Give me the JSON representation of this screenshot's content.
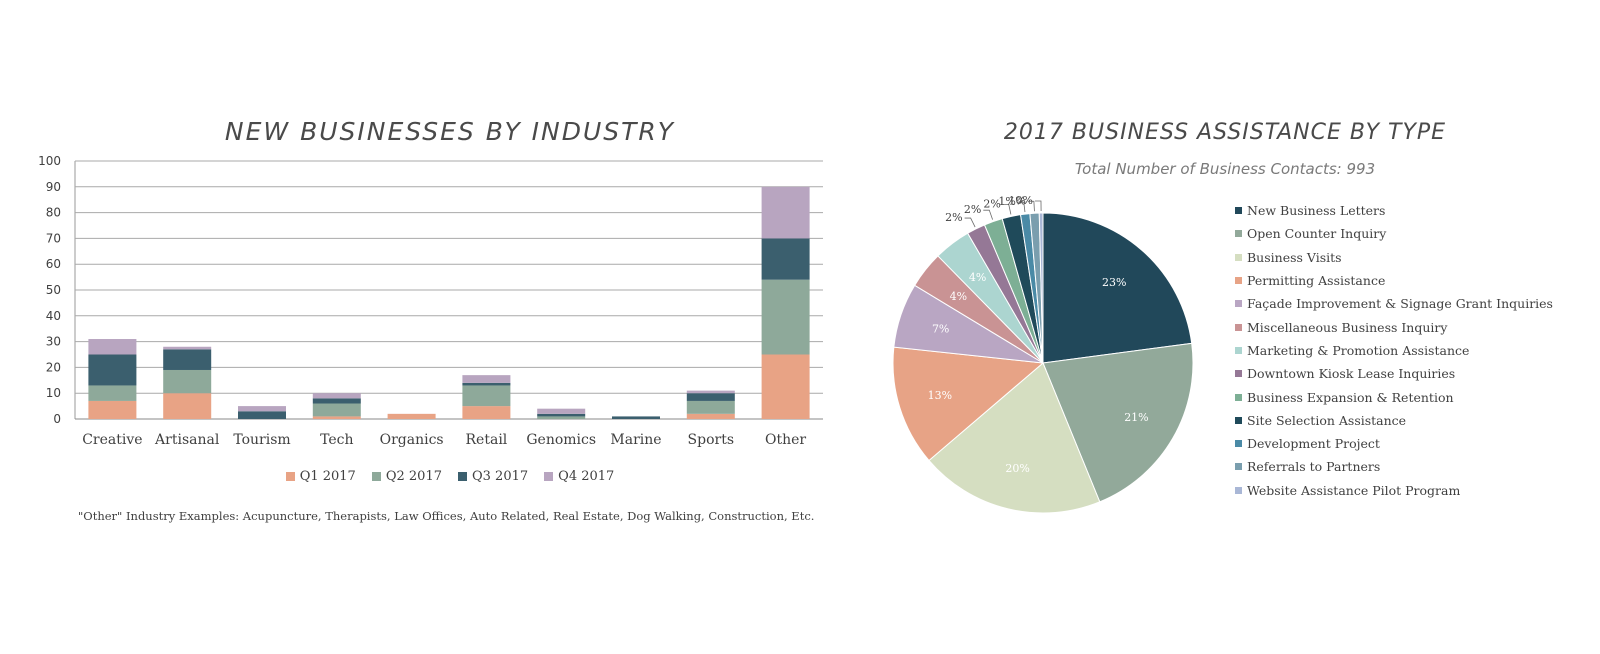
{
  "chart_data": [
    {
      "type": "bar",
      "stacked": true,
      "title": "NEW BUSINESSES BY INDUSTRY",
      "categories": [
        "Creative",
        "Artisanal",
        "Tourism",
        "Tech",
        "Organics",
        "Retail",
        "Genomics",
        "Marine",
        "Sports",
        "Other"
      ],
      "series": [
        {
          "name": "Q1 2017",
          "color": "#e8a385",
          "values": [
            7,
            10,
            0,
            1,
            2,
            5,
            0,
            0,
            2,
            25
          ]
        },
        {
          "name": "Q2 2017",
          "color": "#8ea99a",
          "values": [
            6,
            9,
            0,
            5,
            0,
            8,
            1,
            0,
            5,
            29
          ]
        },
        {
          "name": "Q3 2017",
          "color": "#3b5f6e",
          "values": [
            12,
            8,
            3,
            2,
            0,
            1,
            1,
            1,
            3,
            16
          ]
        },
        {
          "name": "Q4 2017",
          "color": "#b8a5c0",
          "values": [
            6,
            1,
            2,
            2,
            0,
            3,
            2,
            0,
            1,
            20
          ]
        }
      ],
      "yticks": [
        "0",
        "10",
        "20",
        "30",
        "40",
        "50",
        "60",
        "70",
        "80",
        "90",
        "100"
      ],
      "ylim": [
        0,
        100
      ],
      "xlabel": "",
      "ylabel": "",
      "grid": true,
      "legend_position": "bottom",
      "footnote": "\"Other\" Industry Examples: Acupuncture, Therapists, Law Offices, Auto Related, Real Estate, Dog Walking, Construction, Etc."
    },
    {
      "type": "pie",
      "title": "2017 BUSINESS ASSISTANCE BY TYPE",
      "subtitle": "Total Number of Business Contacts: 993",
      "legend_position": "right",
      "slices": [
        {
          "name": "New Business Letters",
          "value": 23,
          "label": "23%",
          "color": "#21485a"
        },
        {
          "name": "Open Counter Inquiry",
          "value": 21,
          "label": "21%",
          "color": "#92a99a"
        },
        {
          "name": "Business Visits",
          "value": 20,
          "label": "20%",
          "color": "#d5dec1"
        },
        {
          "name": "Permitting Assistance",
          "value": 13,
          "label": "13%",
          "color": "#e7a386"
        },
        {
          "name": "Façade Improvement & Signage Grant Inquiries",
          "value": 7,
          "label": "7%",
          "color": "#b9a6c3"
        },
        {
          "name": "Miscellaneous Business Inquiry",
          "value": 4,
          "label": "4%",
          "color": "#c99394"
        },
        {
          "name": "Marketing & Promotion Assistance",
          "value": 4,
          "label": "4%",
          "color": "#acd5d0"
        },
        {
          "name": "Downtown Kiosk Lease Inquiries",
          "value": 2,
          "label": "2%",
          "color": "#957896"
        },
        {
          "name": "Business Expansion & Retention",
          "value": 2,
          "label": "2%",
          "color": "#7daf95"
        },
        {
          "name": "Site Selection Assistance",
          "value": 2,
          "label": "2%",
          "color": "#1f4a5a"
        },
        {
          "name": "Development Project",
          "value": 1,
          "label": "1%",
          "color": "#4a8aa6"
        },
        {
          "name": "Referrals to Partners",
          "value": 1,
          "label": "1%",
          "color": "#7a9eae"
        },
        {
          "name": "Website Assistance Pilot Program",
          "value": 0.4,
          "label": "0%",
          "color": "#a9b7d6"
        }
      ]
    }
  ]
}
